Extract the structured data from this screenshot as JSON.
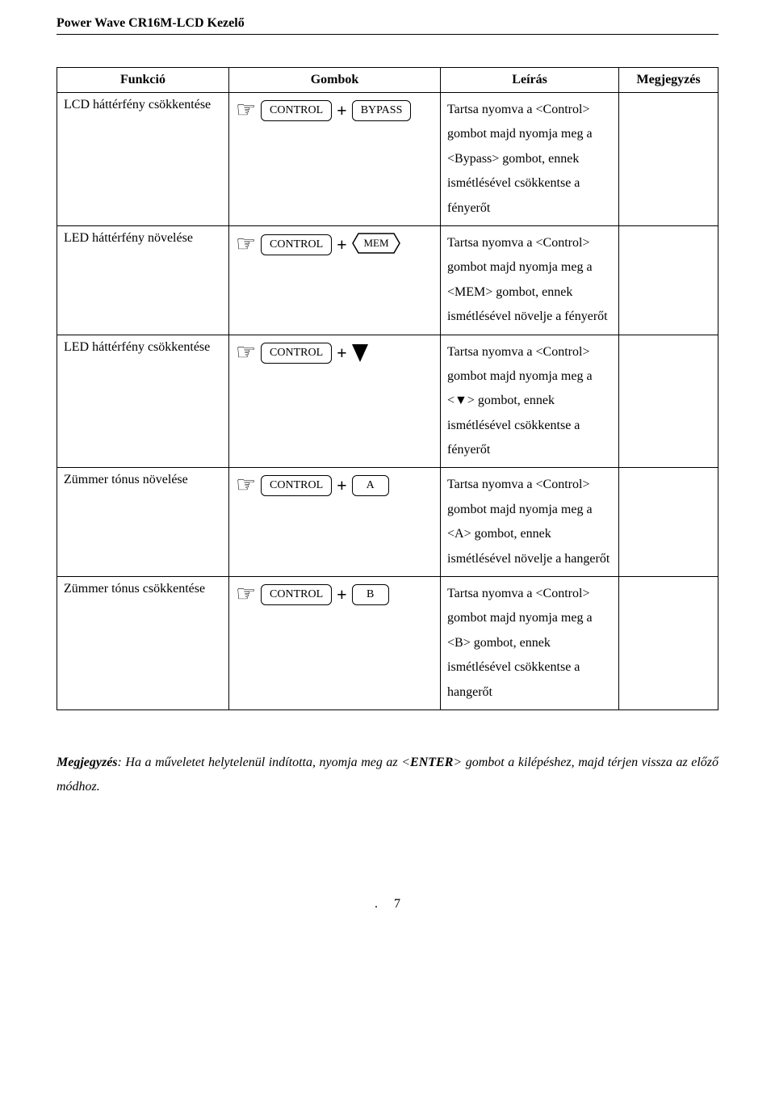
{
  "header": {
    "title": "Power Wave CR16M-LCD Kezelő"
  },
  "table": {
    "headers": {
      "funkcio": "Funkció",
      "gombok": "Gombok",
      "leiras": "Leírás",
      "megjegyzes": "Megjegyzés"
    },
    "keys": {
      "control": "CONTROL",
      "bypass": "BYPASS",
      "mem": "MEM",
      "a": "A",
      "b": "B"
    },
    "rows": [
      {
        "funkcio": "LCD háttérfény csökkentése",
        "second_key": "bypass",
        "second_shape": "rect",
        "leiras": "Tartsa nyomva a <Control> gombot majd nyomja meg a <Bypass> gombot, ennek ismétlésével csökkentse a fényerőt"
      },
      {
        "funkcio": "LED háttérfény növelése",
        "second_key": "mem",
        "second_shape": "hex",
        "leiras": "Tartsa nyomva a <Control> gombot majd nyomja meg a <MEM> gombot, ennek ismétlésével növelje a fényerőt"
      },
      {
        "funkcio": "LED háttérfény csökkentése",
        "second_key": null,
        "second_shape": "arrow",
        "leiras": "Tartsa nyomva a <Control> gombot majd nyomja meg a <▼> gombot, ennek ismétlésével csökkentse a fényerőt"
      },
      {
        "funkcio": "Zümmer tónus növelése",
        "second_key": "a",
        "second_shape": "rect",
        "leiras": "Tartsa nyomva a <Control> gombot majd nyomja meg a <A> gombot, ennek ismétlésével növelje a hangerőt"
      },
      {
        "funkcio": "Zümmer tónus csökkentése",
        "second_key": "b",
        "second_shape": "rect",
        "leiras": "Tartsa nyomva a <Control> gombot majd nyomja meg a <B> gombot, ennek ismétlésével csökkentse a hangerőt"
      }
    ]
  },
  "note": {
    "prefix": "Megjegyzés",
    "text_before": ": Ha a műveletet helytelenül indította, nyomja meg az <",
    "enter": "ENTER",
    "text_after": "> gombot a kilépéshez, majd térjen vissza az előző módhoz."
  },
  "page_number": "7"
}
